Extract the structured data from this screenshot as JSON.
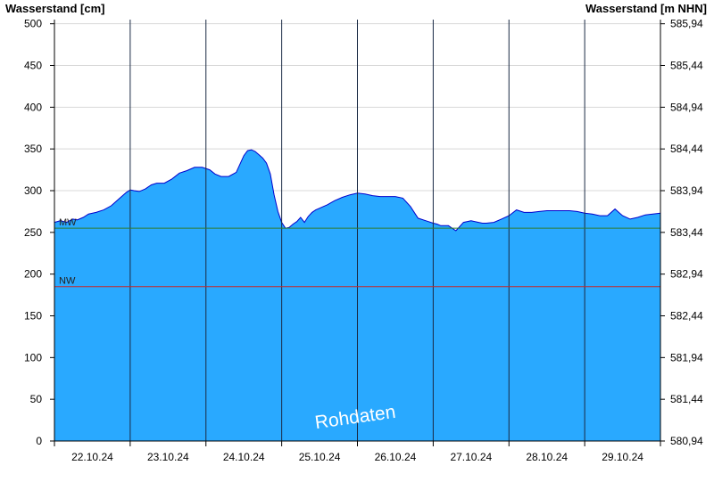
{
  "chart_data": {
    "type": "area",
    "left_axis_title": "Wasserstand [cm]",
    "right_axis_title": "Wasserstand [m NHN]",
    "y_left_ticks": [
      "0",
      "50",
      "100",
      "150",
      "200",
      "250",
      "300",
      "350",
      "400",
      "450",
      "500"
    ],
    "y_right_ticks": [
      "580,94",
      "581,44",
      "581,94",
      "582,44",
      "582,94",
      "583,44",
      "583,94",
      "584,44",
      "584,94",
      "585,44",
      "585,94"
    ],
    "ylim": [
      0,
      505
    ],
    "x_dates": [
      "22.10.24",
      "23.10.24",
      "24.10.24",
      "25.10.24",
      "26.10.24",
      "27.10.24",
      "28.10.24",
      "29.10.24"
    ],
    "day_range": [
      0,
      8
    ],
    "reference_lines": [
      {
        "label": "MW",
        "value": 255,
        "color": "#2e7d32"
      },
      {
        "label": "NW",
        "value": 185,
        "color": "#c62828"
      }
    ],
    "series": [
      {
        "x": [
          0,
          0.08,
          0.16,
          0.24,
          0.3,
          0.38,
          0.45,
          0.55,
          0.65,
          0.75,
          0.85,
          0.95,
          1.0,
          1.05,
          1.12,
          1.2,
          1.28,
          1.35,
          1.45,
          1.55,
          1.65,
          1.75,
          1.85,
          1.95,
          2.05,
          2.12,
          2.2,
          2.3,
          2.4,
          2.5,
          2.55,
          2.6,
          2.65,
          2.7,
          2.75,
          2.8,
          2.85,
          2.9,
          2.95,
          3.0,
          3.05,
          3.1,
          3.15,
          3.2,
          3.25,
          3.3,
          3.35,
          3.4,
          3.45,
          3.5,
          3.55,
          3.6,
          3.7,
          3.8,
          3.9,
          4.0,
          4.1,
          4.2,
          4.3,
          4.4,
          4.5,
          4.6,
          4.7,
          4.8,
          4.9,
          5.0,
          5.05,
          5.1,
          5.2,
          5.3,
          5.4,
          5.5,
          5.6,
          5.65,
          5.7,
          5.8,
          5.9,
          6.0,
          6.1,
          6.2,
          6.3,
          6.4,
          6.5,
          6.6,
          6.7,
          6.8,
          6.9,
          7.0,
          7.1,
          7.2,
          7.3,
          7.4,
          7.45,
          7.5,
          7.6,
          7.7,
          7.8,
          7.9,
          8.0
        ],
        "values": [
          262,
          264,
          262,
          266,
          265,
          268,
          272,
          274,
          277,
          282,
          290,
          298,
          301,
          300,
          299,
          302,
          307,
          309,
          309,
          314,
          321,
          324,
          328,
          328,
          325,
          320,
          317,
          317,
          322,
          342,
          348,
          349,
          347,
          343,
          339,
          333,
          320,
          295,
          275,
          262,
          255,
          256,
          260,
          263,
          268,
          262,
          269,
          274,
          277,
          279,
          281,
          283,
          288,
          292,
          295,
          297,
          296,
          294,
          293,
          293,
          293,
          291,
          281,
          267,
          264,
          261,
          260,
          258,
          258,
          252,
          262,
          264,
          262,
          261,
          261,
          262,
          266,
          270,
          277,
          274,
          274,
          275,
          276,
          276,
          276,
          276,
          275,
          273,
          272,
          270,
          270,
          278,
          274,
          270,
          266,
          268,
          271,
          272,
          273
        ]
      }
    ]
  },
  "watermark": "Rohdaten",
  "colors": {
    "area_fill": "#29A9FF",
    "area_stroke": "#0000cc",
    "grid": "#d8d8d8",
    "day_line": "#1a2a44",
    "axis": "#000000"
  }
}
